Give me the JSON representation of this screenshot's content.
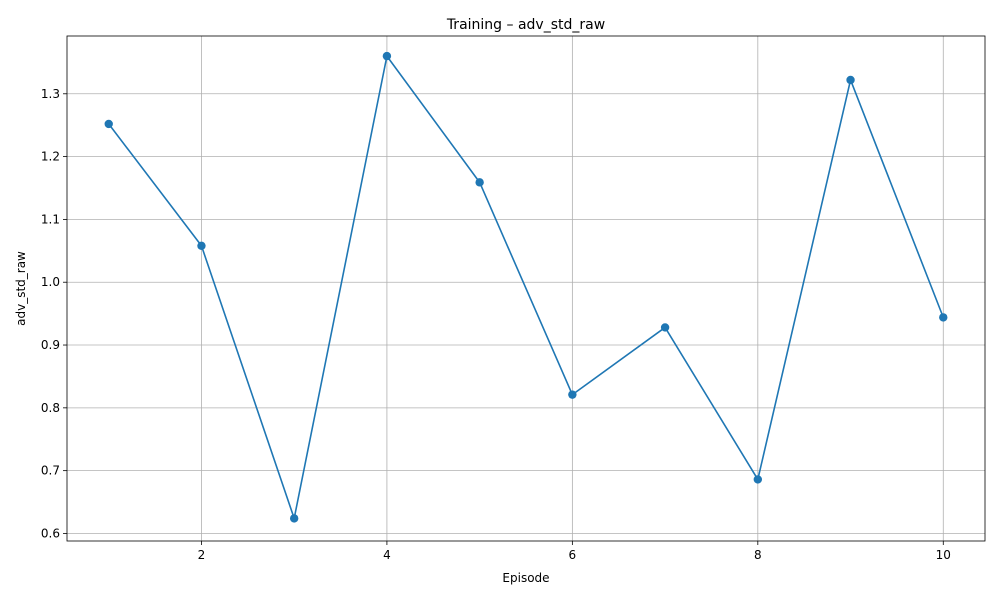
{
  "chart_data": {
    "type": "line",
    "title": "Training – adv_std_raw",
    "xlabel": "Episode",
    "ylabel": "adv_std_raw",
    "x": [
      1,
      2,
      3,
      4,
      5,
      6,
      7,
      8,
      9,
      10
    ],
    "series": [
      {
        "values": [
          1.252,
          1.058,
          0.624,
          1.36,
          1.159,
          0.821,
          0.928,
          0.686,
          1.322,
          0.944
        ],
        "color": "#1f77b4",
        "marker": "circle"
      }
    ],
    "xlim": [
      0.55,
      10.45
    ],
    "ylim": [
      0.588,
      1.392
    ],
    "xticks": [
      2,
      4,
      6,
      8,
      10
    ],
    "xtick_labels": [
      "2",
      "4",
      "6",
      "8",
      "10"
    ],
    "yticks": [
      0.6,
      0.7,
      0.8,
      0.9,
      1.0,
      1.1,
      1.2,
      1.3
    ],
    "ytick_labels": [
      "0.6",
      "0.7",
      "0.8",
      "0.9",
      "1.0",
      "1.1",
      "1.2",
      "1.3"
    ],
    "grid": true,
    "legend": false
  }
}
